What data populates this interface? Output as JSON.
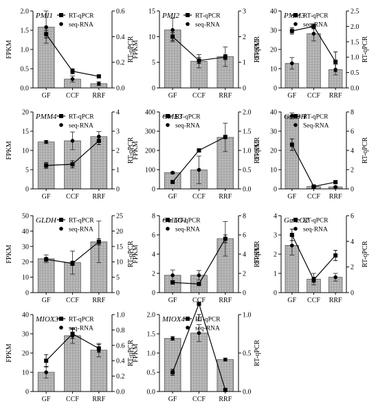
{
  "figure": {
    "left_axis_label": "FPKM",
    "right_axis_label": "RT-qPCR",
    "bar_fill": "#bdbdbd",
    "bar_pattern_color": "#8c8c8c",
    "line_color": "#000000"
  },
  "chart_data": [
    {
      "type": "bar+line",
      "title": "PMI1",
      "categories": [
        "GF",
        "CCF",
        "RRF"
      ],
      "ylabel": "FPKM",
      "ylim": [
        0,
        2.0
      ],
      "yticks": [
        0,
        0.5,
        1.0,
        1.5,
        2.0
      ],
      "y2label": "RT-qPCR",
      "y2lim": [
        0,
        0.6
      ],
      "y2ticks": [
        0,
        0.2,
        0.4,
        0.6
      ],
      "legend": {
        "placement": "top-right",
        "entries": [
          {
            "marker": "square",
            "label": "RT-qPCR"
          },
          {
            "marker": "circle",
            "label": "seq-RNA"
          }
        ]
      },
      "series": [
        {
          "name": "seq-RNA",
          "chart": "bar",
          "axis": "left",
          "values": [
            1.58,
            0.23,
            0.11
          ],
          "errors": [
            0.42,
            0.08,
            0.05
          ]
        },
        {
          "name": "RT-qPCR",
          "chart": "line",
          "axis": "right",
          "values": [
            0.42,
            0.13,
            0.09
          ],
          "errors": [
            0.03,
            0.02,
            0.01
          ]
        }
      ]
    },
    {
      "type": "bar+line",
      "title": "PMI2",
      "categories": [
        "GF",
        "CCF",
        "RRF"
      ],
      "ylabel": "FPKM",
      "ylim": [
        0,
        15
      ],
      "yticks": [
        0,
        5,
        10,
        15
      ],
      "y2label": "RT-qPCR",
      "y2lim": [
        0,
        3
      ],
      "y2ticks": [
        0,
        1,
        2,
        3
      ],
      "legend": {
        "placement": "top-right",
        "entries": [
          {
            "marker": "square",
            "label": "RT-qPCR"
          },
          {
            "marker": "circle",
            "label": "seq-RNA"
          }
        ]
      },
      "series": [
        {
          "name": "seq-RNA",
          "chart": "bar",
          "axis": "left",
          "values": [
            11.3,
            5.2,
            6.1
          ],
          "errors": [
            2.3,
            1.3,
            1.9
          ]
        },
        {
          "name": "RT-qPCR",
          "chart": "line",
          "axis": "right",
          "values": [
            2.0,
            1.07,
            1.2
          ],
          "errors": [
            0.15,
            0.12,
            0.1
          ]
        }
      ]
    },
    {
      "type": "bar+line",
      "title": "PMM3",
      "categories": [
        "GF",
        "CCF",
        "RRF"
      ],
      "ylabel": "FPKM",
      "ylim": [
        0,
        40
      ],
      "yticks": [
        0,
        10,
        20,
        30,
        40
      ],
      "y2label": "RT-qPCR",
      "y2lim": [
        0,
        2.5
      ],
      "y2ticks": [
        0,
        0.5,
        1.0,
        1.5,
        2.0,
        2.5
      ],
      "legend": {
        "placement": "top-right",
        "entries": [
          {
            "marker": "square",
            "label": "RT-qPCR"
          },
          {
            "marker": "circle",
            "label": "seq-RNA"
          }
        ]
      },
      "series": [
        {
          "name": "seq-RNA",
          "chart": "bar",
          "axis": "left",
          "values": [
            12.8,
            28.2,
            9.5
          ],
          "errors": [
            3.0,
            3.8,
            2.7
          ]
        },
        {
          "name": "RT-qPCR",
          "chart": "line",
          "axis": "right",
          "values": [
            1.85,
            2.0,
            0.85
          ],
          "errors": [
            0.1,
            0.08,
            0.32
          ]
        }
      ]
    },
    {
      "type": "bar+line",
      "title": "PMM4",
      "categories": [
        "GF",
        "CCF",
        "RRF"
      ],
      "ylabel": "FPKM",
      "ylim": [
        0,
        20
      ],
      "yticks": [
        0,
        5,
        10,
        15,
        20
      ],
      "y2label": "RT-qPCR",
      "y2lim": [
        0,
        4
      ],
      "y2ticks": [
        0,
        1,
        2,
        3,
        4
      ],
      "legend": {
        "placement": "top-right",
        "entries": [
          {
            "marker": "square",
            "label": "RT-qPCR"
          },
          {
            "marker": "circle",
            "label": "seq-RNA"
          }
        ]
      },
      "series": [
        {
          "name": "seq-RNA",
          "chart": "bar",
          "axis": "left",
          "values": [
            12.2,
            12.5,
            13.6
          ],
          "errors": [
            0.4,
            2.3,
            1.3
          ]
        },
        {
          "name": "RT-qPCR",
          "chart": "line",
          "axis": "right",
          "values": [
            1.22,
            1.28,
            2.5
          ],
          "errors": [
            0.15,
            0.18,
            0.2
          ]
        }
      ]
    },
    {
      "type": "bar+line",
      "title": "GME3",
      "categories": [
        "GF",
        "CCF",
        "RRF"
      ],
      "ylabel": "FPKM",
      "ylim": [
        0,
        400
      ],
      "yticks": [
        0,
        100,
        200,
        300,
        400
      ],
      "y2label": "RT-qPCR",
      "y2lim": [
        0,
        2.0
      ],
      "y2ticks": [
        0,
        0.5,
        1.0,
        1.5,
        2.0
      ],
      "legend": {
        "placement": "top-left",
        "entries": [
          {
            "marker": "square",
            "label": "RT-qPCR"
          },
          {
            "marker": "circle",
            "label": "seq-RNA"
          }
        ]
      },
      "series": [
        {
          "name": "seq-RNA",
          "chart": "bar",
          "axis": "left",
          "values": [
            84,
            99,
            268
          ],
          "errors": [
            5,
            72,
            74
          ]
        },
        {
          "name": "RT-qPCR",
          "chart": "line",
          "axis": "right",
          "values": [
            0.18,
            1.0,
            1.35
          ],
          "errors": [
            0.02,
            0.02,
            0.04
          ]
        }
      ]
    },
    {
      "type": "bar+line",
      "title": "GalDH",
      "categories": [
        "GF",
        "CCF",
        "RRF"
      ],
      "ylabel": "FPKM",
      "ylim": [
        0,
        40
      ],
      "yticks": [
        0,
        10,
        20,
        30,
        40
      ],
      "y2label": "RT-qPCR",
      "y2lim": [
        0,
        8
      ],
      "y2ticks": [
        0,
        2,
        4,
        6,
        8
      ],
      "legend": {
        "placement": "top-right",
        "entries": [
          {
            "marker": "square",
            "label": "RT-qPCR"
          },
          {
            "marker": "circle",
            "label": "Seq-RNA"
          }
        ]
      },
      "series": [
        {
          "name": "Seq-RNA",
          "chart": "bar",
          "axis": "left",
          "values": [
            38,
            1.2,
            1.0
          ],
          "errors": [
            1.5,
            0.4,
            0.3
          ]
        },
        {
          "name": "RT-qPCR",
          "chart": "line",
          "axis": "right",
          "values": [
            4.6,
            0.25,
            0.7
          ],
          "errors": [
            0.6,
            0.06,
            0.08
          ]
        }
      ]
    },
    {
      "type": "bar+line",
      "title": "GLDH",
      "categories": [
        "GF",
        "CCF",
        "RRF"
      ],
      "ylabel": "FPKM",
      "ylim": [
        0,
        50
      ],
      "yticks": [
        0,
        10,
        20,
        30,
        40,
        50
      ],
      "y2label": "RT-qPCR",
      "y2lim": [
        0,
        25
      ],
      "y2ticks": [
        0,
        5,
        10,
        15,
        20,
        25
      ],
      "legend": {
        "placement": "top-right",
        "entries": [
          {
            "marker": "square",
            "label": "RT-qPCR"
          },
          {
            "marker": "circle",
            "label": "seq-RNA"
          }
        ]
      },
      "series": [
        {
          "name": "seq-RNA",
          "chart": "bar",
          "axis": "left",
          "values": [
            22,
            19.5,
            33
          ],
          "errors": [
            2.5,
            7.5,
            13.5
          ]
        },
        {
          "name": "RT-qPCR",
          "chart": "line",
          "axis": "right",
          "values": [
            10.8,
            9.5,
            16.5
          ],
          "errors": [
            0.6,
            0.7,
            1.0
          ]
        }
      ]
    },
    {
      "type": "bar+line",
      "title": "GulLO1",
      "categories": [
        "GF",
        "CCF",
        "RRF"
      ],
      "ylabel": "FPKM",
      "ylim": [
        0,
        8
      ],
      "yticks": [
        0,
        2,
        4,
        6,
        8
      ],
      "y2label": "RT-qPCR",
      "y2lim": [
        0,
        8
      ],
      "y2ticks": [
        0,
        2,
        4,
        6,
        8
      ],
      "legend": {
        "placement": "top-left",
        "entries": [
          {
            "marker": "square",
            "label": "RT-qPCR"
          },
          {
            "marker": "circle",
            "label": "seq-RNA"
          }
        ]
      },
      "series": [
        {
          "name": "seq-RNA",
          "chart": "bar",
          "axis": "left",
          "values": [
            1.8,
            1.8,
            5.6
          ],
          "errors": [
            0.55,
            0.5,
            1.8
          ]
        },
        {
          "name": "RT-qPCR",
          "chart": "line",
          "axis": "right",
          "values": [
            1.05,
            0.9,
            5.6
          ],
          "errors": [
            0.1,
            0.1,
            0.4
          ]
        }
      ]
    },
    {
      "type": "bar+line",
      "title": "GulLO2",
      "categories": [
        "GF",
        "CCF",
        "RRF"
      ],
      "ylabel": "FPKM",
      "ylim": [
        0,
        4
      ],
      "yticks": [
        0,
        1,
        2,
        3,
        4
      ],
      "y2label": "RT-qPCR",
      "y2lim": [
        0,
        6
      ],
      "y2ticks": [
        0,
        2,
        4,
        6
      ],
      "legend": {
        "placement": "top-right",
        "entries": [
          {
            "marker": "square",
            "label": "RT-qPCR"
          },
          {
            "marker": "circle",
            "label": "seq-RNA"
          }
        ]
      },
      "series": [
        {
          "name": "seq-RNA",
          "chart": "bar",
          "axis": "left",
          "values": [
            2.45,
            0.7,
            0.8
          ],
          "errors": [
            0.5,
            0.3,
            0.2
          ]
        },
        {
          "name": "RT-qPCR",
          "chart": "line",
          "axis": "right",
          "values": [
            4.5,
            1.0,
            2.9
          ],
          "errors": [
            0.45,
            0.2,
            0.4
          ]
        }
      ]
    },
    {
      "type": "bar+line",
      "title": "MIOX3",
      "categories": [
        "GF",
        "CCF",
        "RRF"
      ],
      "ylabel": "FPKM",
      "ylim": [
        0,
        40
      ],
      "yticks": [
        0,
        10,
        20,
        30,
        40
      ],
      "y2label": "RT-qPCR",
      "y2lim": [
        0,
        1.0
      ],
      "y2ticks": [
        0,
        0.2,
        0.4,
        0.6,
        0.8,
        1.0
      ],
      "legend": {
        "placement": "top-right",
        "entries": [
          {
            "marker": "square",
            "label": "RT-qPCR"
          },
          {
            "marker": "circle",
            "label": "seq-RNA"
          }
        ]
      },
      "series": [
        {
          "name": "seq-RNA",
          "chart": "bar",
          "axis": "left",
          "values": [
            10,
            29,
            21.5
          ],
          "errors": [
            3,
            4,
            3.5
          ]
        },
        {
          "name": "RT-qPCR",
          "chart": "line",
          "axis": "right",
          "values": [
            0.4,
            0.75,
            0.56
          ],
          "errors": [
            0.08,
            0.06,
            0.05
          ]
        }
      ]
    },
    {
      "type": "bar+line",
      "title": "MIOX4",
      "categories": [
        "GF",
        "CCF",
        "RRF"
      ],
      "ylabel": "FPKM",
      "ylim": [
        0,
        2.0
      ],
      "yticks": [
        0,
        0.5,
        1.0,
        1.5,
        2.0
      ],
      "y2label": "RT-qPCR",
      "y2lim": [
        0,
        1.0
      ],
      "y2ticks": [
        0,
        0.5,
        1.0
      ],
      "legend": {
        "placement": "top-right",
        "entries": [
          {
            "marker": "square",
            "label": "RT-qPCR"
          },
          {
            "marker": "circle",
            "label": "seq-RNA"
          }
        ]
      },
      "series": [
        {
          "name": "seq-RNA",
          "chart": "bar",
          "axis": "left",
          "values": [
            1.38,
            1.52,
            0.83
          ],
          "errors": [
            0.05,
            0.22,
            0.04
          ]
        },
        {
          "name": "RT-qPCR",
          "chart": "line",
          "axis": "right",
          "values": [
            0.25,
            1.14,
            0.02
          ],
          "errors": [
            0.04,
            0.22,
            0.01
          ]
        }
      ]
    }
  ]
}
